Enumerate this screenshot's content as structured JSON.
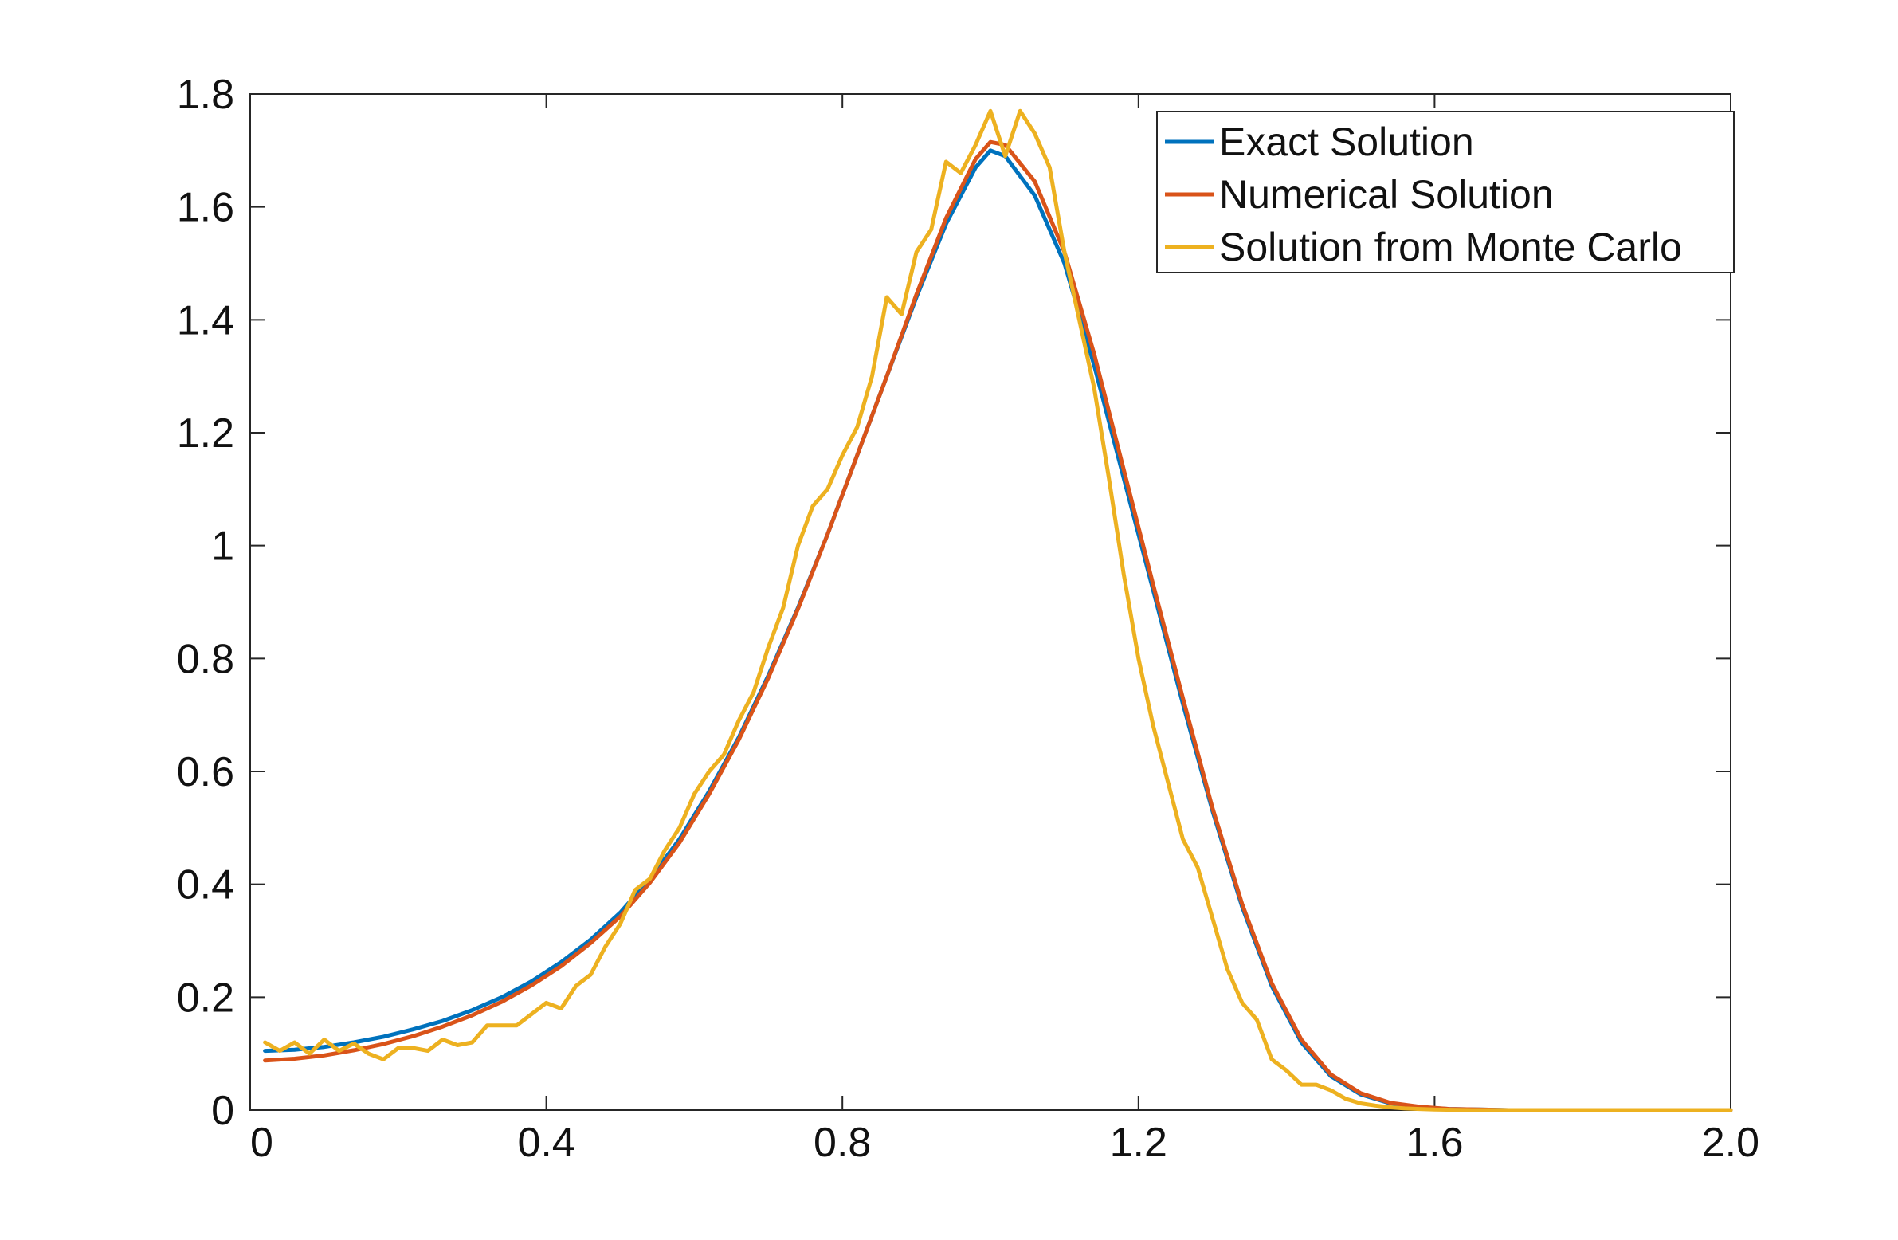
{
  "chart_data": {
    "type": "line",
    "title": "",
    "xlabel": "",
    "ylabel": "",
    "xlim": [
      0,
      2.0
    ],
    "ylim": [
      0,
      1.8
    ],
    "grid": false,
    "legend_position": "top-right",
    "x_ticks": [
      {
        "value": 0,
        "label": "0"
      },
      {
        "value": 0.4,
        "label": "0.4"
      },
      {
        "value": 0.8,
        "label": "0.8"
      },
      {
        "value": 1.2,
        "label": "1.2"
      },
      {
        "value": 1.6,
        "label": "1.6"
      },
      {
        "value": 2.0,
        "label": "2.0"
      }
    ],
    "y_ticks": [
      {
        "value": 0,
        "label": "0"
      },
      {
        "value": 0.2,
        "label": "0.2"
      },
      {
        "value": 0.4,
        "label": "0.4"
      },
      {
        "value": 0.6,
        "label": "0.6"
      },
      {
        "value": 0.8,
        "label": "0.8"
      },
      {
        "value": 1.0,
        "label": "1"
      },
      {
        "value": 1.2,
        "label": "1.2"
      },
      {
        "value": 1.4,
        "label": "1.4"
      },
      {
        "value": 1.6,
        "label": "1.6"
      },
      {
        "value": 1.8,
        "label": "1.8"
      }
    ],
    "series": [
      {
        "name": "Exact Solution",
        "color": "#0072BD",
        "x": [
          0.02,
          0.06,
          0.1,
          0.14,
          0.18,
          0.22,
          0.26,
          0.3,
          0.34,
          0.38,
          0.42,
          0.46,
          0.5,
          0.54,
          0.58,
          0.62,
          0.66,
          0.7,
          0.74,
          0.78,
          0.82,
          0.86,
          0.9,
          0.94,
          0.98,
          1.0,
          1.02,
          1.06,
          1.1,
          1.14,
          1.18,
          1.22,
          1.26,
          1.3,
          1.34,
          1.38,
          1.42,
          1.46,
          1.5,
          1.54,
          1.58,
          1.62,
          1.66,
          1.7,
          1.8,
          1.9,
          2.0
        ],
        "y": [
          0.105,
          0.107,
          0.112,
          0.12,
          0.13,
          0.143,
          0.158,
          0.177,
          0.2,
          0.228,
          0.262,
          0.302,
          0.35,
          0.41,
          0.48,
          0.565,
          0.66,
          0.77,
          0.89,
          1.02,
          1.16,
          1.3,
          1.44,
          1.57,
          1.67,
          1.7,
          1.69,
          1.62,
          1.5,
          1.32,
          1.12,
          0.92,
          0.72,
          0.53,
          0.36,
          0.22,
          0.12,
          0.06,
          0.028,
          0.012,
          0.005,
          0.002,
          0.001,
          0.0,
          0.0,
          0.0,
          0.0
        ]
      },
      {
        "name": "Numerical Solution",
        "color": "#D95319",
        "x": [
          0.02,
          0.06,
          0.1,
          0.14,
          0.18,
          0.22,
          0.26,
          0.3,
          0.34,
          0.38,
          0.42,
          0.46,
          0.5,
          0.54,
          0.58,
          0.62,
          0.66,
          0.7,
          0.74,
          0.78,
          0.82,
          0.86,
          0.9,
          0.94,
          0.98,
          1.0,
          1.02,
          1.06,
          1.1,
          1.14,
          1.18,
          1.22,
          1.26,
          1.3,
          1.34,
          1.38,
          1.42,
          1.46,
          1.5,
          1.54,
          1.58,
          1.62,
          1.66,
          1.7,
          1.8,
          1.9,
          2.0
        ],
        "y": [
          0.088,
          0.091,
          0.097,
          0.106,
          0.117,
          0.131,
          0.148,
          0.168,
          0.192,
          0.221,
          0.255,
          0.296,
          0.343,
          0.403,
          0.474,
          0.56,
          0.656,
          0.766,
          0.888,
          1.02,
          1.16,
          1.3,
          1.445,
          1.58,
          1.685,
          1.715,
          1.71,
          1.645,
          1.52,
          1.34,
          1.135,
          0.93,
          0.73,
          0.535,
          0.365,
          0.225,
          0.125,
          0.063,
          0.03,
          0.013,
          0.006,
          0.002,
          0.001,
          0.0,
          0.0,
          0.0,
          0.0
        ]
      },
      {
        "name": "Solution from Monte Carlo",
        "color": "#EDB120",
        "x": [
          0.02,
          0.04,
          0.06,
          0.08,
          0.1,
          0.12,
          0.14,
          0.16,
          0.18,
          0.2,
          0.22,
          0.24,
          0.26,
          0.28,
          0.3,
          0.32,
          0.34,
          0.36,
          0.38,
          0.4,
          0.42,
          0.44,
          0.46,
          0.48,
          0.5,
          0.52,
          0.54,
          0.56,
          0.58,
          0.6,
          0.62,
          0.64,
          0.66,
          0.68,
          0.7,
          0.72,
          0.74,
          0.76,
          0.78,
          0.8,
          0.82,
          0.84,
          0.86,
          0.88,
          0.9,
          0.92,
          0.94,
          0.96,
          0.98,
          1.0,
          1.02,
          1.04,
          1.06,
          1.08,
          1.1,
          1.12,
          1.14,
          1.16,
          1.18,
          1.2,
          1.22,
          1.24,
          1.26,
          1.28,
          1.3,
          1.32,
          1.34,
          1.36,
          1.38,
          1.4,
          1.42,
          1.44,
          1.46,
          1.48,
          1.5,
          1.52,
          1.54,
          1.56,
          1.58,
          1.6,
          1.65,
          1.7,
          1.75,
          1.8,
          1.9,
          2.0
        ],
        "y": [
          0.12,
          0.105,
          0.12,
          0.1,
          0.125,
          0.105,
          0.118,
          0.1,
          0.09,
          0.11,
          0.11,
          0.105,
          0.125,
          0.115,
          0.12,
          0.15,
          0.15,
          0.15,
          0.17,
          0.19,
          0.18,
          0.22,
          0.24,
          0.29,
          0.33,
          0.39,
          0.41,
          0.46,
          0.5,
          0.56,
          0.6,
          0.63,
          0.69,
          0.74,
          0.82,
          0.89,
          1.0,
          1.07,
          1.1,
          1.16,
          1.21,
          1.3,
          1.44,
          1.41,
          1.52,
          1.56,
          1.68,
          1.66,
          1.71,
          1.77,
          1.69,
          1.77,
          1.73,
          1.67,
          1.52,
          1.4,
          1.28,
          1.12,
          0.95,
          0.8,
          0.68,
          0.58,
          0.48,
          0.43,
          0.34,
          0.25,
          0.19,
          0.16,
          0.09,
          0.07,
          0.045,
          0.045,
          0.035,
          0.02,
          0.012,
          0.008,
          0.005,
          0.003,
          0.002,
          0.001,
          0.0,
          0.0,
          0.0,
          0.0,
          0.0,
          0.0
        ]
      }
    ]
  }
}
